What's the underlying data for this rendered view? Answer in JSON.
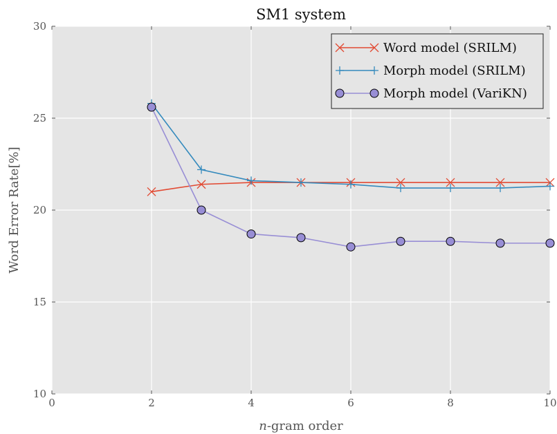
{
  "chart_data": {
    "type": "line",
    "title": "SM1 system",
    "xlabel_italic": "n",
    "xlabel_rest": "-gram order",
    "ylabel": "Word Error Rate[%]",
    "xlim": [
      0,
      10
    ],
    "ylim": [
      10,
      30
    ],
    "xticks": [
      "0",
      "2",
      "4",
      "6",
      "8",
      "10"
    ],
    "yticks": [
      "10",
      "15",
      "20",
      "25",
      "30"
    ],
    "grid": true,
    "legend_position": "top-right",
    "series": [
      {
        "name": "Word model (SRILM)",
        "marker": "x",
        "color": "#E24A33",
        "x": [
          2,
          3,
          4,
          5,
          6,
          7,
          8,
          9,
          10
        ],
        "values": [
          21.0,
          21.4,
          21.5,
          21.5,
          21.5,
          21.5,
          21.5,
          21.5,
          21.5
        ]
      },
      {
        "name": "Morph model (SRILM)",
        "marker": "+",
        "color": "#348ABD",
        "x": [
          2,
          3,
          4,
          5,
          6,
          7,
          8,
          9,
          10
        ],
        "values": [
          25.8,
          22.2,
          21.6,
          21.5,
          21.4,
          21.2,
          21.2,
          21.2,
          21.3
        ]
      },
      {
        "name": "Morph model (VariKN)",
        "marker": "o",
        "color": "#988ED5",
        "x": [
          2,
          3,
          4,
          5,
          6,
          7,
          8,
          9,
          10
        ],
        "values": [
          25.6,
          20.0,
          18.7,
          18.5,
          18.0,
          18.3,
          18.3,
          18.2,
          18.2
        ]
      }
    ]
  }
}
